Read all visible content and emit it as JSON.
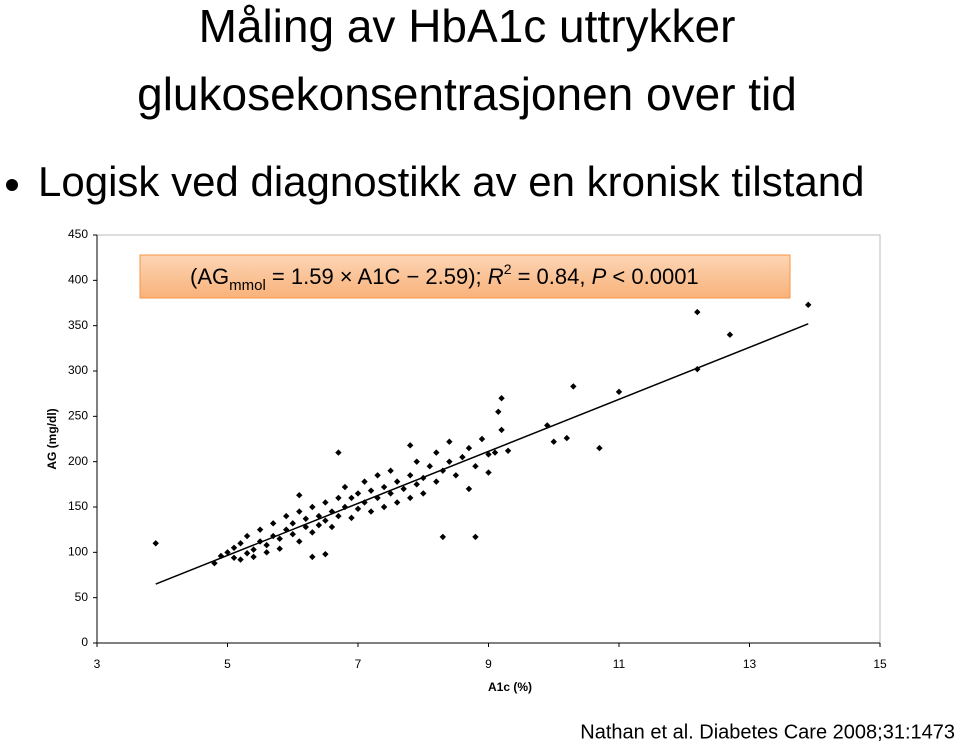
{
  "slide": {
    "title": [
      "Måling av HbA1c uttrykker",
      "glukosekonsentrasjonen over tid"
    ],
    "bullet": "Logisk ved diagnostikk av en kronisk tilstand",
    "citation": "Nathan et al. Diabetes Care 2008;31:1473"
  },
  "chart_data": {
    "type": "scatter",
    "x_label": "A1c (%)",
    "y_label": "AG (mg/dl)",
    "annotation": [
      "(AG",
      "mmol",
      " = 1.59 × A1C − 2.59);  ",
      "R",
      "2",
      " = 0.84, ",
      "P",
      " < 0.0001"
    ],
    "xlim": [
      3,
      15
    ],
    "xticks": [
      3,
      5,
      7,
      9,
      11,
      13,
      15
    ],
    "ylim": [
      0,
      450
    ],
    "yticks": [
      0,
      50,
      100,
      150,
      200,
      250,
      300,
      350,
      400,
      450
    ],
    "color": "#000000",
    "grid": false,
    "x": [
      4.8,
      4.9,
      5.0,
      5.1,
      5.1,
      5.2,
      5.2,
      5.3,
      5.3,
      5.4,
      5.4,
      5.5,
      5.5,
      5.6,
      5.6,
      5.7,
      5.7,
      5.8,
      5.8,
      5.9,
      5.9,
      6.0,
      6.0,
      6.1,
      6.1,
      6.2,
      6.2,
      6.3,
      6.3,
      6.4,
      6.4,
      6.5,
      6.5,
      6.6,
      6.6,
      6.7,
      6.7,
      6.8,
      6.8,
      6.9,
      6.9,
      7.0,
      7.0,
      7.1,
      7.1,
      7.2,
      7.2,
      7.3,
      7.3,
      7.4,
      7.4,
      7.5,
      7.5,
      7.6,
      7.6,
      7.7,
      7.8,
      7.8,
      7.9,
      7.9,
      8.0,
      8.0,
      8.1,
      8.2,
      8.2,
      8.3,
      8.4,
      8.4,
      8.5,
      8.6,
      8.7,
      8.7,
      8.8,
      8.9,
      9.0,
      9.0,
      9.1,
      9.2,
      9.3,
      6.7,
      6.1,
      7.8,
      9.2,
      9.15,
      9.9,
      10.0,
      10.2,
      10.7,
      10.3,
      11.0,
      12.2,
      12.2,
      12.7,
      13.9,
      8.8,
      8.3,
      3.9,
      6.3,
      6.5
    ],
    "y": [
      88,
      96,
      100,
      94,
      105,
      92,
      110,
      99,
      118,
      103,
      95,
      112,
      125,
      108,
      100,
      118,
      132,
      115,
      104,
      125,
      140,
      120,
      132,
      112,
      145,
      128,
      137,
      150,
      122,
      140,
      130,
      155,
      135,
      145,
      128,
      160,
      140,
      150,
      172,
      138,
      160,
      148,
      165,
      155,
      178,
      145,
      168,
      160,
      185,
      150,
      172,
      165,
      190,
      155,
      178,
      170,
      185,
      160,
      175,
      200,
      182,
      165,
      195,
      178,
      210,
      190,
      200,
      222,
      185,
      205,
      170,
      215,
      195,
      225,
      208,
      188,
      210,
      235,
      212,
      210,
      163,
      218,
      270,
      255,
      240,
      222,
      226,
      215,
      283,
      277,
      302,
      365,
      340,
      373,
      117,
      117,
      110,
      95,
      98
    ],
    "trendline": {
      "x": [
        3.9,
        13.9
      ],
      "y": [
        65,
        352
      ]
    }
  }
}
